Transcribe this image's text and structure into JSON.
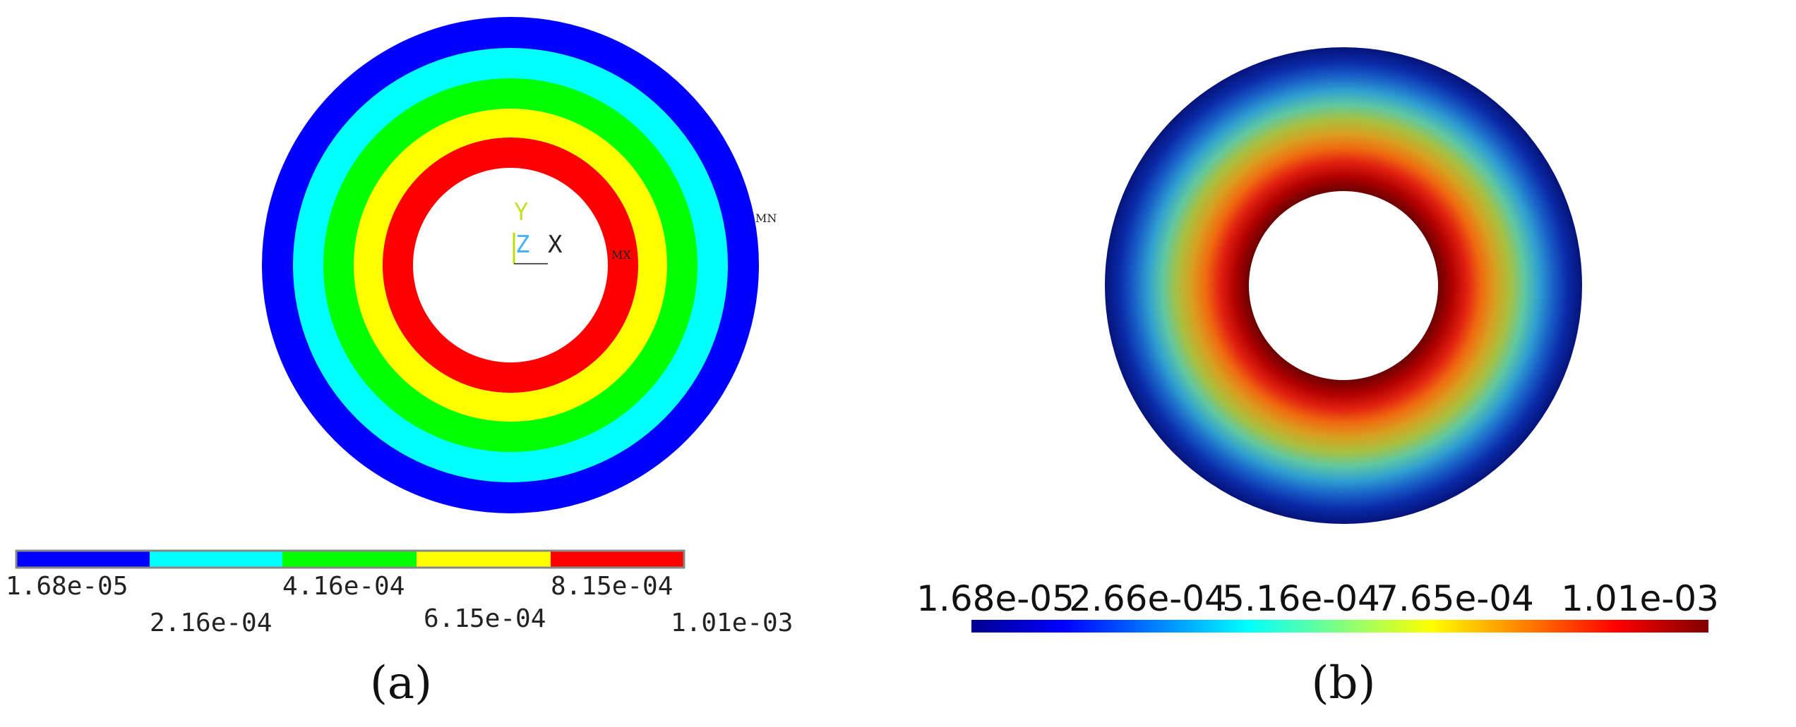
{
  "panel_a": {
    "caption": "(a)",
    "axis_triad": {
      "y_label": "Y",
      "z_label": "Z",
      "x_label": "X"
    },
    "max_marker": "MX",
    "min_marker": "MN",
    "bands": [
      {
        "color": "#0000ff"
      },
      {
        "color": "#00ffff"
      },
      {
        "color": "#00ff00"
      },
      {
        "color": "#ffff00"
      },
      {
        "color": "#ff0000"
      }
    ],
    "legend": {
      "upper_labels": [
        "1.68e-05",
        "4.16e-04",
        "8.15e-04"
      ],
      "lower_labels": [
        "2.16e-04",
        "6.15e-04",
        "1.01e-03"
      ]
    }
  },
  "panel_b": {
    "caption": "(b)",
    "colorbar": {
      "labels": [
        "1.68e-05",
        "2.66e-04",
        "5.16e-04",
        "7.65e-04",
        "1.01e-03"
      ],
      "colormap": [
        "#00008f",
        "#0000ff",
        "#0080ff",
        "#00ffff",
        "#80ff80",
        "#ffff00",
        "#ff8000",
        "#ff0000",
        "#800000"
      ]
    },
    "ring_gradient": [
      "#6b0000",
      "#b00000",
      "#e02010",
      "#f06a10",
      "#d8a020",
      "#a8c040",
      "#60c8a0",
      "#30a0d0",
      "#1860c8",
      "#0a2aa8",
      "#05137a"
    ]
  }
}
